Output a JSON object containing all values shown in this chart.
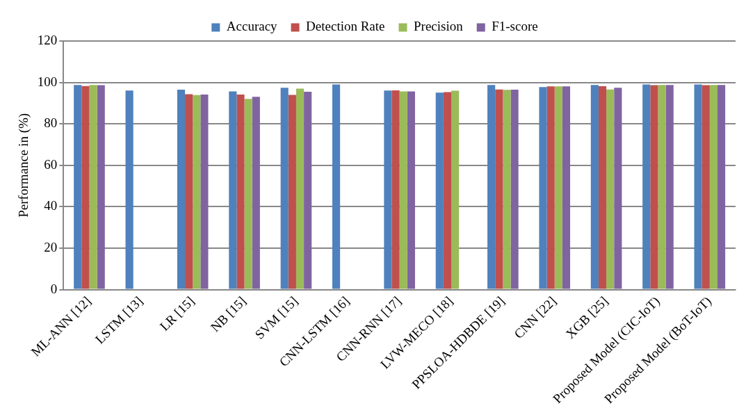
{
  "chart_data": {
    "type": "bar",
    "ylabel": "Performance in (%)",
    "categories": [
      "ML-ANN [12]",
      "LSTM [13]",
      "LR [15]",
      "NB [15]",
      "SVM [15]",
      "CNN-LSTM [16]",
      "CNN-RNN [17]",
      "LVW-MECO [18]",
      "PPSLOA-HDBDE [19]",
      "CNN [22]",
      "XGB [25]",
      "Proposed Model (CIC-IoT)",
      "Proposed Model (BoT-IoT)"
    ],
    "series": [
      {
        "name": "Accuracy",
        "color": "#4f81bd",
        "values": [
          98.8,
          96.1,
          96.5,
          95.7,
          97.4,
          99.0,
          96.1,
          95.1,
          98.8,
          97.8,
          98.8,
          99.0,
          99.0
        ]
      },
      {
        "name": "Detection Rate",
        "color": "#c0504d",
        "values": [
          98.3,
          null,
          94.3,
          94.2,
          94.0,
          null,
          96.2,
          95.3,
          96.6,
          98.1,
          98.2,
          98.7,
          98.7
        ]
      },
      {
        "name": "Precision",
        "color": "#9bbb59",
        "values": [
          98.8,
          null,
          93.9,
          92.1,
          97.0,
          null,
          95.7,
          96.0,
          96.4,
          98.1,
          96.6,
          98.8,
          98.8
        ]
      },
      {
        "name": "F1-score",
        "color": "#8064a2",
        "values": [
          98.7,
          null,
          94.2,
          93.1,
          95.5,
          null,
          95.7,
          null,
          96.5,
          98.1,
          97.4,
          98.8,
          98.8
        ]
      }
    ],
    "ylim": [
      0,
      120
    ],
    "yticks": [
      0,
      20,
      40,
      60,
      80,
      100,
      120
    ],
    "grid": "y",
    "legend": "top"
  }
}
